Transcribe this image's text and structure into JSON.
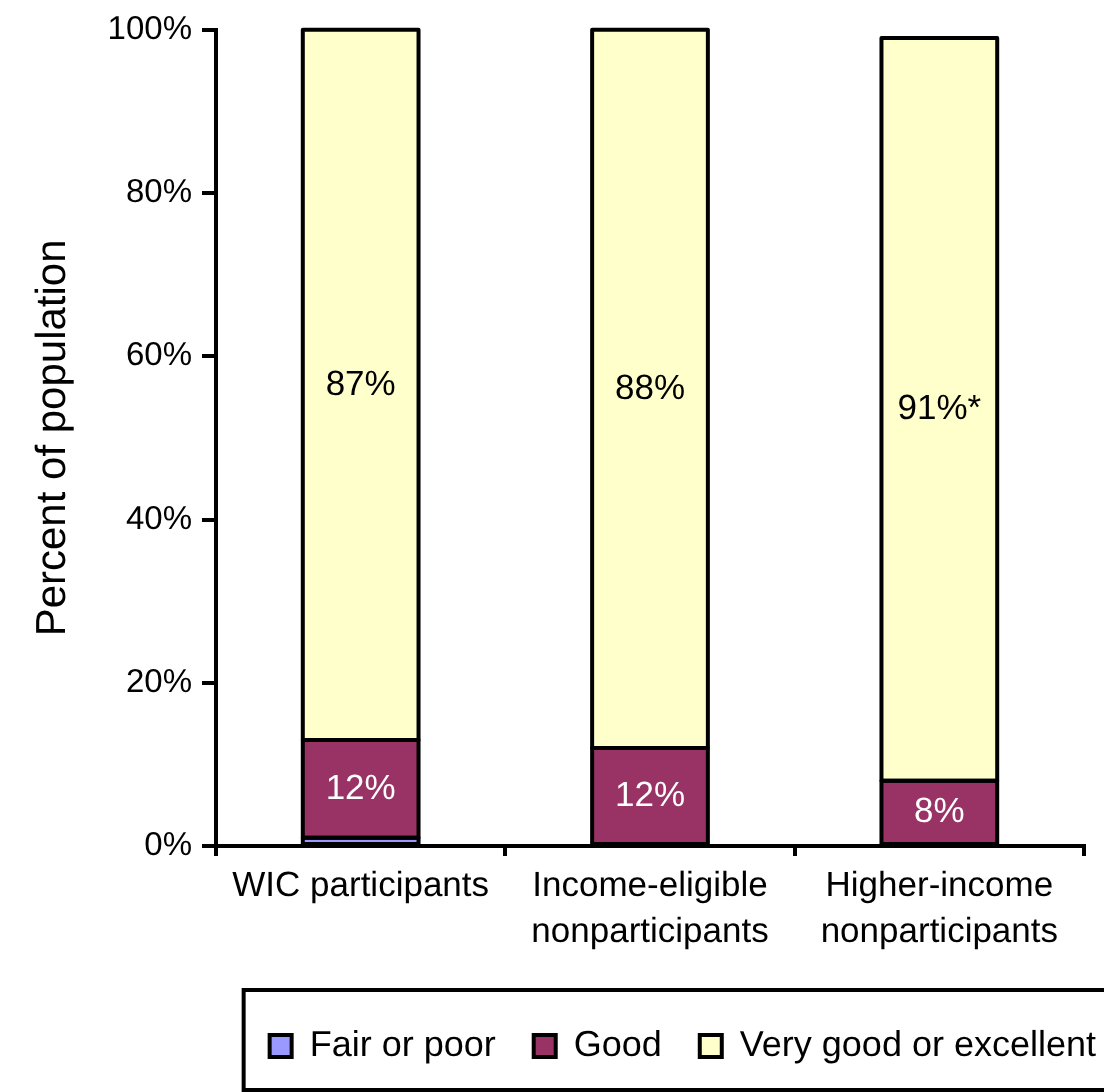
{
  "chart_data": {
    "type": "bar",
    "stacked": true,
    "ylabel": "Percent of population",
    "categories": [
      "WIC participants",
      "Income-eligible nonparticipants",
      "Higher-income nonparticipants"
    ],
    "series": [
      {
        "name": "Fair or poor",
        "color": "#9999ff",
        "values": [
          1,
          null,
          null
        ]
      },
      {
        "name": "Good",
        "color": "#993366",
        "values": [
          12,
          12,
          8
        ],
        "value_labels": [
          "12%",
          "12%",
          "8%"
        ]
      },
      {
        "name": "Very good or excellent",
        "color": "#ffffcc",
        "values": [
          87,
          88,
          91
        ],
        "value_labels": [
          "87%",
          "88%",
          "91%*"
        ]
      }
    ],
    "ylim": [
      0,
      100
    ],
    "yticks": [
      {
        "value": 0,
        "label": "0%"
      },
      {
        "value": 20,
        "label": "20%"
      },
      {
        "value": 40,
        "label": "40%"
      },
      {
        "value": 60,
        "label": "60%"
      },
      {
        "value": 80,
        "label": "80%"
      },
      {
        "value": 100,
        "label": "100%"
      }
    ],
    "grid": false,
    "legend": "bottom"
  }
}
